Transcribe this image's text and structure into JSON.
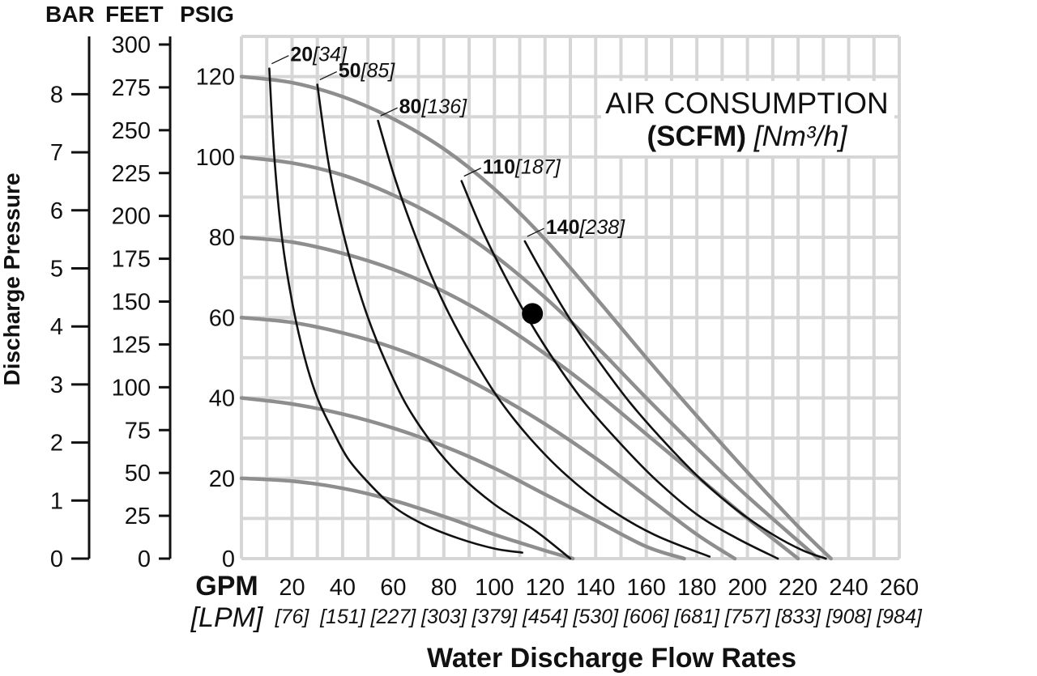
{
  "chart_data": {
    "type": "line",
    "legend": {
      "title": "AIR CONSUMPTION",
      "units_bold": "(SCFM)",
      "units_italic": "[Nm³/h]",
      "placement": "top-right"
    },
    "axis_headers": {
      "bar": "BAR",
      "feet": "FEET",
      "psig": "PSIG"
    },
    "ylabel": "Discharge Pressure",
    "xlabel": "Water Discharge Flow Rates",
    "x_unit": "GPM",
    "x_unit_alt": "[LPM]",
    "xlim": [
      0,
      260
    ],
    "ylim": [
      0,
      130
    ],
    "grid": true,
    "x_ticks": [
      "20",
      "40",
      "60",
      "80",
      "100",
      "120",
      "140",
      "160",
      "180",
      "200",
      "220",
      "240",
      "260"
    ],
    "x_ticks_lpm": [
      "[76]",
      "[151]",
      "[227]",
      "[303]",
      "[379]",
      "[454]",
      "[530]",
      "[606]",
      "[681]",
      "[757]",
      "[833]",
      "[908]",
      "[984]"
    ],
    "psig_ticks": [
      "0",
      "20",
      "40",
      "60",
      "80",
      "100",
      "120"
    ],
    "feet_ticks": [
      "0",
      "25",
      "50",
      "75",
      "100",
      "125",
      "150",
      "175",
      "200",
      "225",
      "250",
      "275",
      "300"
    ],
    "bar_ticks": [
      "0",
      "1",
      "2",
      "3",
      "4",
      "5",
      "6",
      "7",
      "8"
    ],
    "pressure_series": [
      {
        "inlet_psig": 20,
        "x": [
          0,
          20,
          40,
          60,
          80,
          100,
          120,
          131
        ],
        "y": [
          20,
          19.3,
          17.5,
          14.5,
          10.5,
          6,
          2,
          0
        ]
      },
      {
        "inlet_psig": 40,
        "x": [
          0,
          20,
          40,
          60,
          80,
          100,
          120,
          140,
          160,
          175
        ],
        "y": [
          40,
          38.5,
          36,
          32.5,
          28,
          22.5,
          16,
          9.5,
          3,
          0
        ]
      },
      {
        "inlet_psig": 60,
        "x": [
          0,
          20,
          40,
          60,
          80,
          100,
          120,
          140,
          160,
          180,
          195
        ],
        "y": [
          60,
          58.8,
          56.2,
          52.5,
          47.5,
          41,
          33.5,
          25,
          15.5,
          6,
          0
        ]
      },
      {
        "inlet_psig": 80,
        "x": [
          0,
          20,
          40,
          60,
          80,
          100,
          120,
          140,
          160,
          180,
          200,
          220
        ],
        "y": [
          80,
          78.8,
          76,
          72,
          66.5,
          59.5,
          51,
          41.5,
          31,
          20.5,
          10,
          0
        ]
      },
      {
        "inlet_psig": 100,
        "x": [
          0,
          20,
          40,
          60,
          80,
          100,
          120,
          140,
          160,
          180,
          200,
          228
        ],
        "y": [
          100,
          98.5,
          95.5,
          90.5,
          84,
          75.5,
          65,
          53,
          40,
          27.5,
          15.5,
          0
        ]
      },
      {
        "inlet_psig": 120,
        "x": [
          0,
          20,
          40,
          60,
          80,
          100,
          120,
          140,
          160,
          180,
          200,
          220,
          233
        ],
        "y": [
          120,
          118.5,
          115,
          109.5,
          102,
          92,
          79.5,
          65,
          50,
          35.5,
          21.5,
          8,
          0
        ]
      }
    ],
    "air_series": [
      {
        "scfm": "20",
        "nm3h": "[34]",
        "x": [
          11,
          13,
          16,
          20,
          25,
          30,
          36,
          42,
          50,
          60,
          72,
          86,
          100,
          111
        ],
        "y": [
          122,
          100,
          80,
          64,
          50,
          40,
          32,
          25,
          19,
          13,
          8.5,
          5,
          2.5,
          1.5
        ]
      },
      {
        "scfm": "50",
        "nm3h": "[85]",
        "x": [
          30,
          34,
          38,
          44,
          50,
          57,
          65,
          75,
          86,
          100,
          116,
          130
        ],
        "y": [
          118,
          100,
          87,
          72,
          60,
          49,
          38.5,
          29,
          21,
          13.5,
          7,
          0
        ]
      },
      {
        "scfm": "80",
        "nm3h": "[136]",
        "x": [
          54,
          60,
          66,
          74,
          82,
          92,
          102,
          114,
          128,
          144,
          163,
          185
        ],
        "y": [
          109,
          96,
          85,
          72,
          61,
          49.5,
          39.5,
          30,
          21,
          13,
          6,
          0.5
        ]
      },
      {
        "scfm": "110",
        "nm3h": "[187]",
        "x": [
          87,
          95,
          104,
          114,
          124,
          136,
          150,
          164,
          180,
          196,
          212
        ],
        "y": [
          94,
          82,
          70.5,
          59,
          49,
          38.5,
          28.5,
          19.5,
          11,
          5,
          0
        ]
      },
      {
        "scfm": "140",
        "nm3h": "[238]",
        "x": [
          112,
          120,
          130,
          142,
          154,
          168,
          182,
          196,
          210,
          222,
          231
        ],
        "y": [
          79,
          70,
          59.5,
          48.5,
          38.5,
          28.5,
          19.5,
          12,
          6,
          2,
          0
        ]
      }
    ],
    "marker": {
      "x": 115,
      "y": 61
    }
  }
}
